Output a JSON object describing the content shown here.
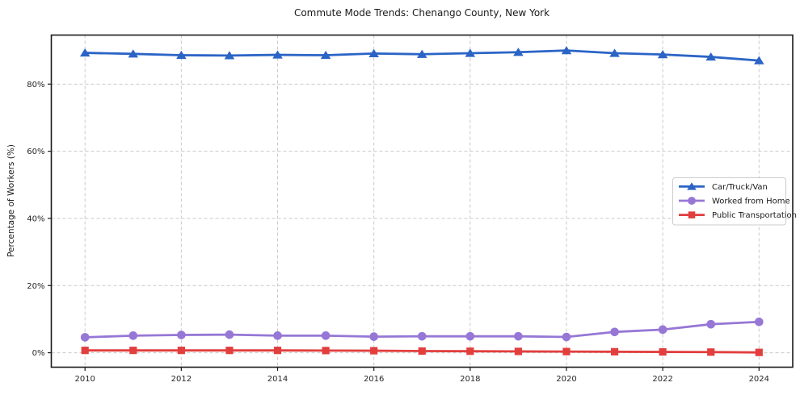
{
  "chart_data": {
    "type": "line",
    "title": "Commute Mode Trends: Chenango County, New York",
    "xlabel": "",
    "ylabel": "Percentage of Workers (%)",
    "x": [
      2010,
      2011,
      2012,
      2013,
      2014,
      2015,
      2016,
      2017,
      2018,
      2019,
      2020,
      2021,
      2022,
      2023,
      2024
    ],
    "x_ticks": [
      2010,
      2012,
      2014,
      2016,
      2018,
      2020,
      2022,
      2024
    ],
    "x_tick_labels": [
      "2010",
      "2012",
      "2014",
      "2016",
      "2018",
      "2020",
      "2022",
      "2024"
    ],
    "y_ticks": [
      0,
      20,
      40,
      60,
      80
    ],
    "y_tick_labels": [
      "0%",
      "20%",
      "40%",
      "60%",
      "80%"
    ],
    "xlim": [
      2009.3,
      2024.7
    ],
    "ylim": [
      -4.3,
      94.6
    ],
    "grid": true,
    "grid_style": "dashed",
    "legend_position": "center-right",
    "series": [
      {
        "name": "Car/Truck/Van",
        "color": "#2b64c6",
        "marker": "triangle",
        "values": [
          89.3,
          89.0,
          88.6,
          88.5,
          88.7,
          88.6,
          89.1,
          88.9,
          89.2,
          89.5,
          90.0,
          89.2,
          88.8,
          88.1,
          87.0
        ]
      },
      {
        "name": "Worked from Home",
        "color": "#9677d6",
        "marker": "circle",
        "values": [
          4.6,
          5.1,
          5.3,
          5.4,
          5.1,
          5.1,
          4.8,
          4.9,
          4.9,
          4.9,
          4.7,
          6.2,
          6.9,
          8.5,
          9.2
        ]
      },
      {
        "name": "Public Transportation",
        "color": "#e23e3e",
        "marker": "square",
        "values": [
          0.7,
          0.7,
          0.7,
          0.7,
          0.7,
          0.65,
          0.6,
          0.5,
          0.45,
          0.4,
          0.35,
          0.3,
          0.25,
          0.2,
          0.1
        ]
      }
    ],
    "colors": {
      "grid": "#c9c9c9",
      "spine": "#1a1a1a",
      "tick_label": "#262626",
      "legend_border": "#cccccc",
      "legend_bg": "#ffffff",
      "background": "#ffffff"
    }
  }
}
